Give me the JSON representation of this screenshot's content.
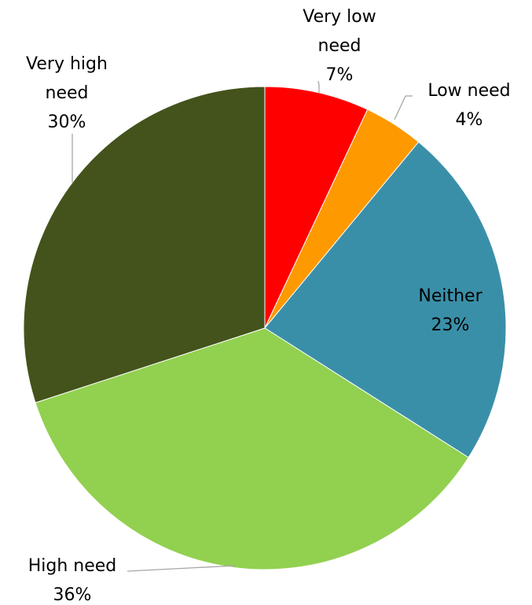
{
  "chart_data": {
    "type": "pie",
    "title": "",
    "start_angle_deg": 0,
    "direction": "clockwise",
    "slices": [
      {
        "label_lines": [
          "Very low",
          "need"
        ],
        "percent_label": "7%",
        "value": 7,
        "color": "#ff0000"
      },
      {
        "label_lines": [
          "Low need"
        ],
        "percent_label": "4%",
        "value": 4,
        "color": "#ff9900"
      },
      {
        "label_lines": [
          "Neither"
        ],
        "percent_label": "23%",
        "value": 23,
        "color": "#3a8fa8"
      },
      {
        "label_lines": [
          "High need"
        ],
        "percent_label": "36%",
        "value": 36,
        "color": "#92d050"
      },
      {
        "label_lines": [
          "Very high",
          "need"
        ],
        "percent_label": "30%",
        "value": 30,
        "color": "#43531b"
      }
    ],
    "legend": "none"
  }
}
